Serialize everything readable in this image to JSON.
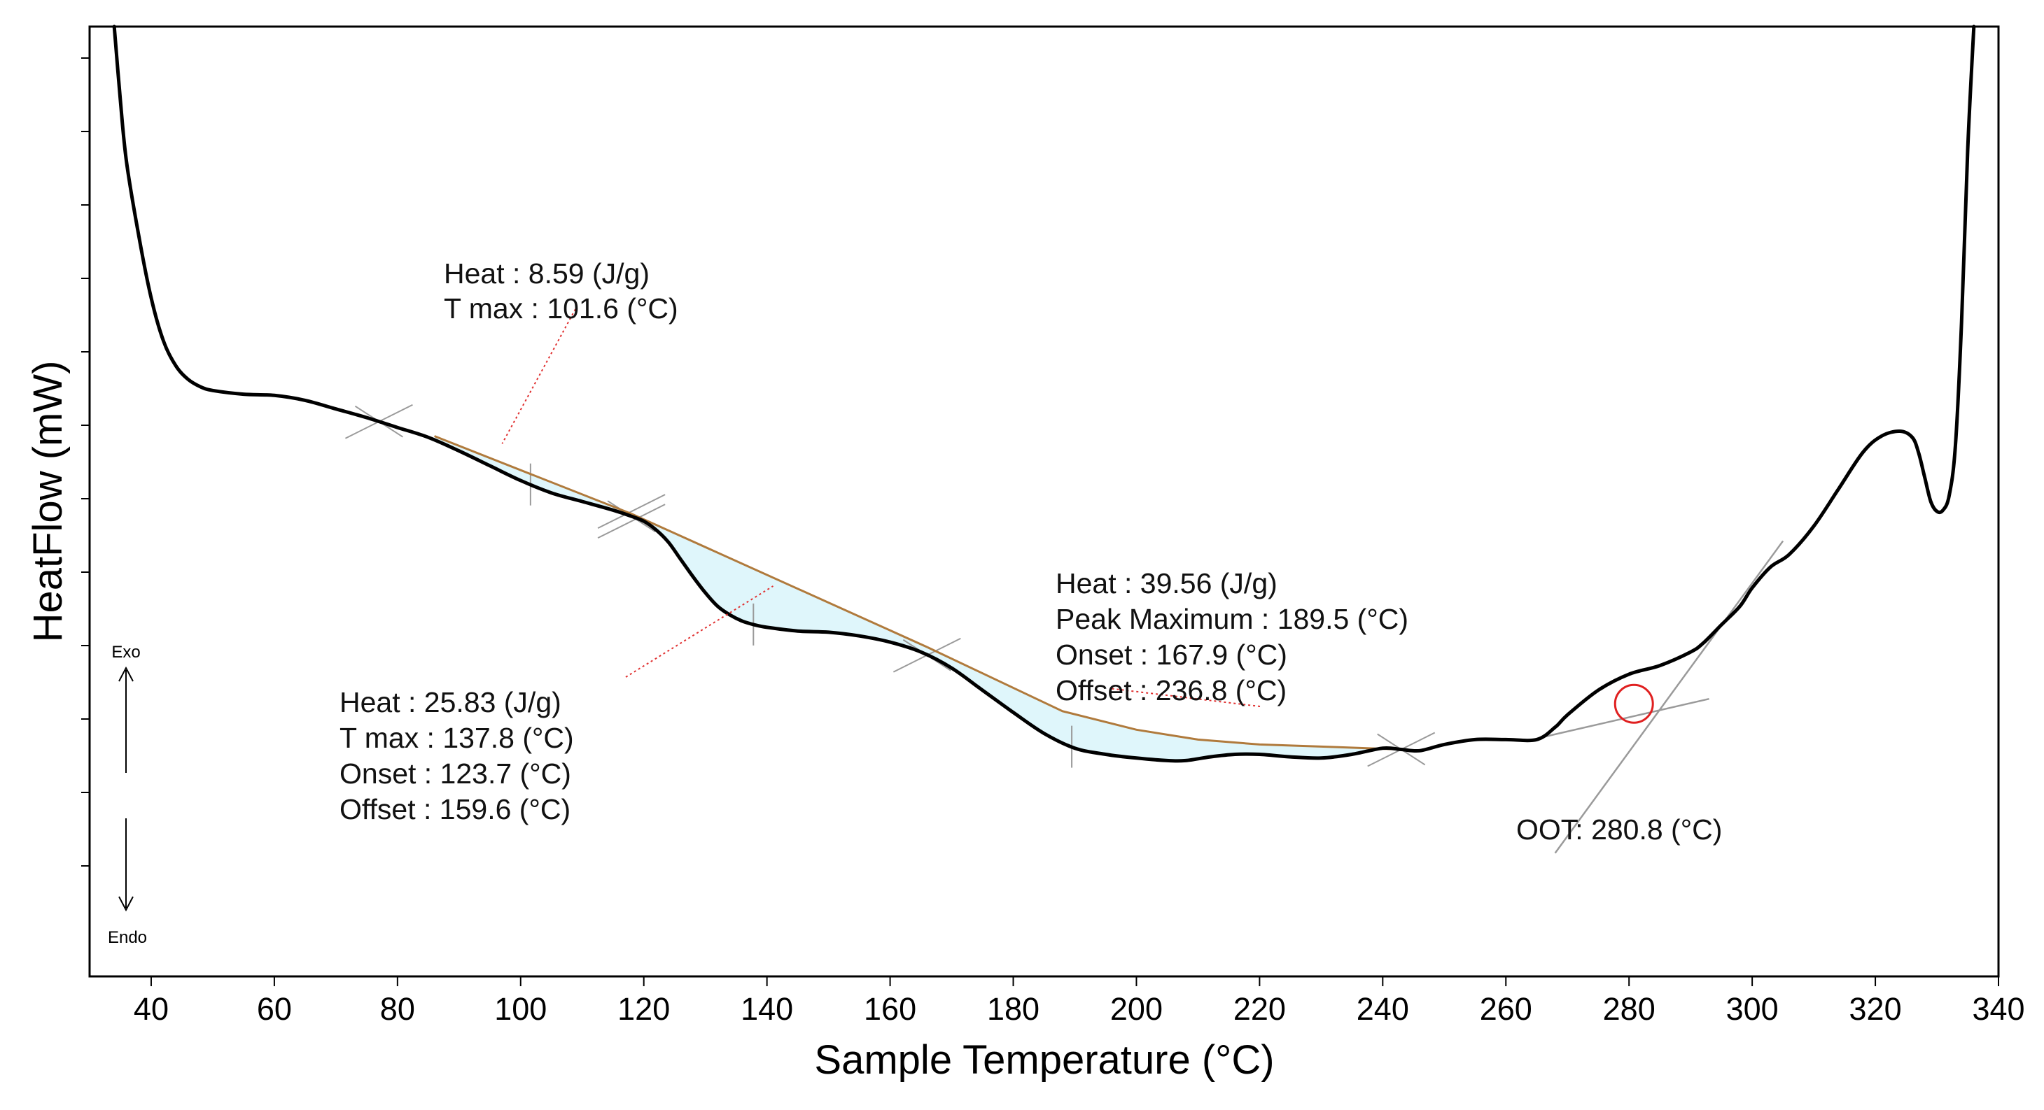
{
  "chart_data": {
    "type": "line",
    "title": "",
    "xlabel": "Sample Temperature (°C)",
    "ylabel": "HeatFlow (mW)",
    "xlim": [
      30,
      340
    ],
    "ylim": [
      -6.3,
      1.4
    ],
    "x_ticks": [
      40,
      60,
      80,
      100,
      120,
      140,
      160,
      180,
      200,
      220,
      240,
      260,
      280,
      300,
      320,
      340
    ],
    "x_tick_labels": [
      "40",
      "60",
      "80",
      "100",
      "120",
      "140",
      "160",
      "180",
      "200",
      "220",
      "240",
      "260",
      "280",
      "300",
      "320",
      "340"
    ],
    "direction": {
      "up": "Exo",
      "down": "Endo"
    },
    "colors": {
      "curve": "#000000",
      "baseline": "#b07a3c",
      "fill": "#dff6fb",
      "leader": "#e03030",
      "marker": "#e02020",
      "construction": "#9a9a9a"
    },
    "series": [
      {
        "name": "HeatFlow",
        "x": [
          34,
          35,
          36,
          38,
          40,
          42,
          44,
          46,
          48,
          50,
          55,
          60,
          65,
          70,
          75,
          80,
          85,
          90,
          95,
          100,
          105,
          110,
          115,
          118,
          120,
          122,
          124,
          126,
          128,
          130,
          132,
          134,
          136,
          138,
          140,
          145,
          150,
          155,
          160,
          165,
          170,
          175,
          180,
          185,
          190,
          195,
          200,
          205,
          208,
          212,
          216,
          220,
          225,
          230,
          235,
          240,
          243,
          246,
          250,
          255,
          260,
          265,
          268,
          270,
          275,
          280,
          285,
          290,
          292,
          295,
          298,
          300,
          303,
          306,
          310,
          314,
          318,
          321,
          324,
          326,
          327,
          328,
          329,
          330,
          331,
          332,
          333,
          334,
          335,
          336
        ],
        "y": [
          1.4,
          0.8,
          0.3,
          -0.3,
          -0.8,
          -1.15,
          -1.35,
          -1.46,
          -1.52,
          -1.55,
          -1.58,
          -1.59,
          -1.63,
          -1.7,
          -1.77,
          -1.85,
          -1.93,
          -2.04,
          -2.16,
          -2.28,
          -2.38,
          -2.45,
          -2.52,
          -2.57,
          -2.61,
          -2.68,
          -2.78,
          -2.92,
          -3.06,
          -3.19,
          -3.3,
          -3.37,
          -3.42,
          -3.45,
          -3.47,
          -3.5,
          -3.51,
          -3.54,
          -3.59,
          -3.67,
          -3.8,
          -3.98,
          -4.16,
          -4.33,
          -4.45,
          -4.5,
          -4.53,
          -4.55,
          -4.55,
          -4.52,
          -4.5,
          -4.5,
          -4.52,
          -4.53,
          -4.5,
          -4.45,
          -4.46,
          -4.47,
          -4.42,
          -4.38,
          -4.38,
          -4.38,
          -4.28,
          -4.18,
          -3.98,
          -3.85,
          -3.78,
          -3.67,
          -3.6,
          -3.45,
          -3.3,
          -3.15,
          -2.98,
          -2.88,
          -2.65,
          -2.35,
          -2.05,
          -1.92,
          -1.88,
          -1.93,
          -2.05,
          -2.25,
          -2.45,
          -2.53,
          -2.52,
          -2.4,
          -2.0,
          -1.0,
          0.4,
          1.4
        ]
      }
    ],
    "integration_baselines": [
      {
        "x": [
          86,
          118
        ],
        "y": [
          -1.92,
          -2.55
        ]
      },
      {
        "x": [
          118,
          166
        ],
        "y": [
          -2.55,
          -3.63
        ]
      },
      {
        "x": [
          166,
          188,
          200,
          210,
          220,
          232,
          243
        ],
        "y": [
          -3.63,
          -4.15,
          -4.3,
          -4.38,
          -4.42,
          -4.44,
          -4.46
        ]
      }
    ],
    "annotations": [
      {
        "lines": [
          "Heat :  8.59 (J/g)",
          "T max :  101.6 (°C)"
        ]
      },
      {
        "lines": [
          "Heat :  25.83 (J/g)",
          "T max :  137.8 (°C)",
          "Onset :  123.7 (°C)",
          "Offset :  159.6 (°C)"
        ]
      },
      {
        "lines": [
          "Heat :  39.56 (J/g)",
          "Peak Maximum :  189.5 (°C)",
          "Onset :  167.9 (°C)",
          "Offset :  236.8 (°C)"
        ]
      },
      {
        "lines": [
          "OOT:  280.8  (°C)"
        ]
      }
    ],
    "oot_point": {
      "x": 280.8,
      "y": -4.09
    },
    "tangent_lines": [
      {
        "x": [
          266,
          293
        ],
        "y": [
          -4.36,
          -4.05
        ]
      },
      {
        "x": [
          268,
          305
        ],
        "y": [
          -5.3,
          -2.77
        ]
      }
    ]
  }
}
